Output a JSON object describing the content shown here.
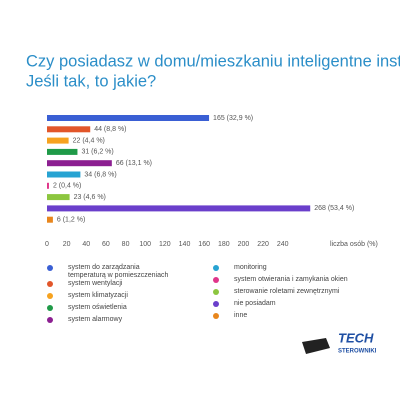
{
  "chart_data": {
    "type": "hbar",
    "title": "Czy posiadasz w domu/mieszkaniu inteligentne instalacje?",
    "subtitle": "Jeśli tak, to jakie?",
    "categories": [
      "system do zarządzania temperaturą w pomieszczeniach",
      "system wentylacji",
      "system klimatyzacji",
      "system oświetlenia",
      "system alarmowy",
      "monitoring",
      "system  otwierania i zamykania okien",
      "sterowanie roletami zewnętrznymi",
      "nie posiadam",
      "inne"
    ],
    "colors": [
      "#3a5fd4",
      "#e2562a",
      "#f6a21f",
      "#1f9a48",
      "#8c1f91",
      "#27a3d2",
      "#e0358a",
      "#8cc63f",
      "#6a3fcb",
      "#e8861d"
    ],
    "values": [
      165,
      44,
      22,
      31,
      66,
      34,
      2,
      23,
      268,
      6
    ],
    "value_labels": [
      "165 (32,9 %)",
      "44 (8,8 %)",
      "22 (4,4 %)",
      "31 (6,2 %)",
      "66 (13,1 %)",
      "34 (6,8 %)",
      "2 (0,4 %)",
      "23 (4,6 %)",
      "268 (53,4 %)",
      "6 (1,2 %)"
    ],
    "x_label": "liczba osób (%)",
    "xlim": [
      0,
      280
    ],
    "xticks": [
      0,
      20,
      40,
      60,
      80,
      100,
      120,
      140,
      160,
      180,
      200,
      220,
      240
    ],
    "grid": false
  },
  "logo": {
    "title": "TECH",
    "subtitle": "STEROWNIKI"
  }
}
